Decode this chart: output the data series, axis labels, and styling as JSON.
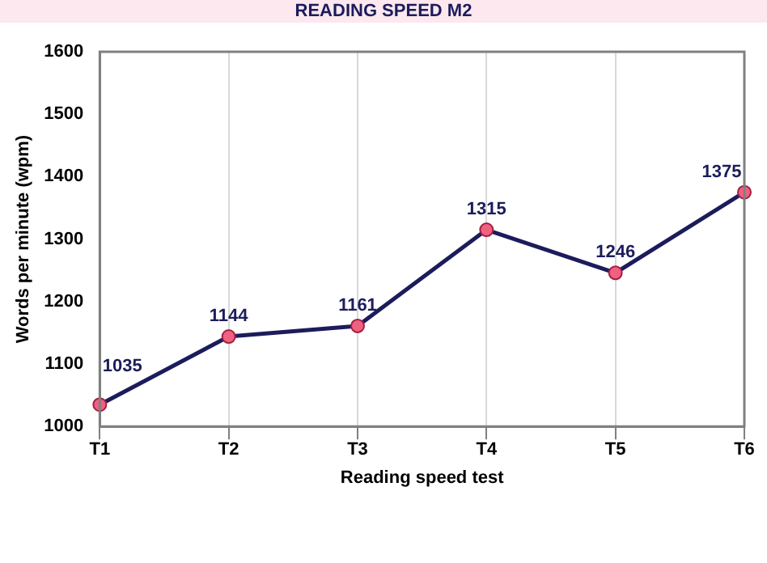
{
  "chart_data": {
    "type": "line",
    "title": "READING SPEED M2",
    "xlabel": "Reading speed test",
    "ylabel": "Words per minute (wpm)",
    "categories": [
      "T1",
      "T2",
      "T3",
      "T4",
      "T5",
      "T6"
    ],
    "series": [
      {
        "color": "#1c1c5c",
        "values": [
          1035,
          1144,
          1161,
          1315,
          1246,
          1375
        ]
      }
    ],
    "ylim": [
      1000,
      1600
    ],
    "yticks": [
      1000,
      1100,
      1200,
      1300,
      1400,
      1500,
      1600
    ],
    "grid": "x",
    "marker": "circle",
    "line_style": "solid",
    "data_labels": true,
    "legend": false
  }
}
